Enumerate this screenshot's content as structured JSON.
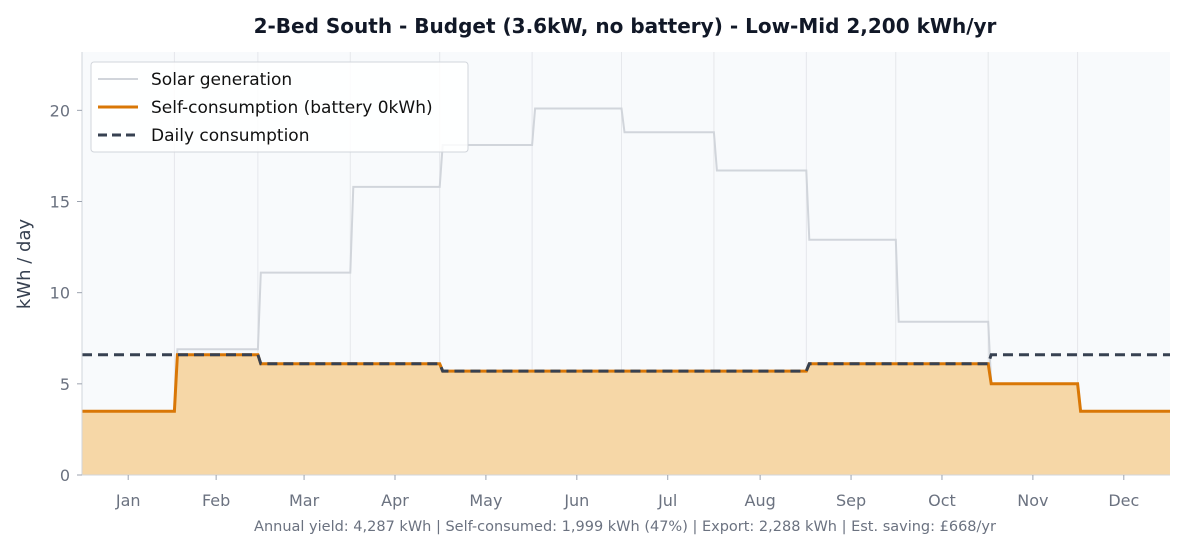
{
  "chart_data": {
    "type": "line",
    "title": "2-Bed South - Budget (3.6kW, no battery) - Low-Mid 2,200 kWh/yr",
    "xlabel": "",
    "ylabel": "kWh / day",
    "categories": [
      "Jan",
      "Feb",
      "Mar",
      "Apr",
      "May",
      "Jun",
      "Jul",
      "Aug",
      "Sep",
      "Oct",
      "Nov",
      "Dec"
    ],
    "ylim": [
      0,
      23.2
    ],
    "yticks": [
      0,
      5,
      10,
      15,
      20
    ],
    "grid": "vertical at month boundaries",
    "legend_position": "top-left",
    "series": [
      {
        "name": "Solar generation",
        "style": "solid",
        "color": "#d1d5db",
        "values": [
          3.5,
          6.9,
          11.1,
          15.8,
          18.1,
          20.1,
          18.8,
          16.7,
          12.9,
          8.4,
          5.0,
          3.5
        ]
      },
      {
        "name": "Self-consumption (battery 0kWh)",
        "style": "solid-filled",
        "color": "#d97706",
        "fill": "#f6d7a7",
        "values": [
          3.5,
          6.6,
          6.1,
          6.1,
          5.7,
          5.7,
          5.7,
          5.7,
          6.1,
          6.1,
          5.0,
          3.5
        ]
      },
      {
        "name": "Daily consumption",
        "style": "dashed",
        "color": "#374151",
        "values": [
          6.6,
          6.6,
          6.1,
          6.1,
          5.7,
          5.7,
          5.7,
          5.7,
          6.1,
          6.1,
          6.6,
          6.6
        ]
      }
    ],
    "footer": "Annual yield: 4,287 kWh  |  Self-consumed: 1,999 kWh (47%)  |  Export: 2,288 kWh  |  Est. saving: £668/yr"
  }
}
